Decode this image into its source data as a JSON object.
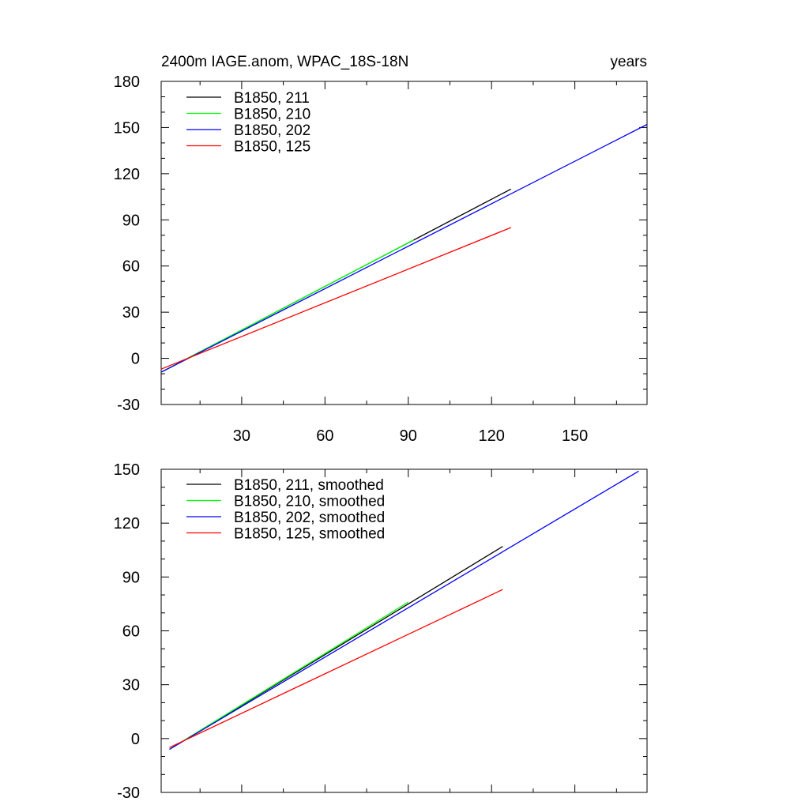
{
  "chart_data": [
    {
      "type": "line",
      "title_left": "2400m IAGE.anom, WPAC_18S-18N",
      "title_right": "years",
      "xlabel": "",
      "ylabel": "",
      "xlim": [
        1,
        176
      ],
      "ylim": [
        -30,
        180
      ],
      "x_ticks": [
        30,
        60,
        90,
        120,
        150
      ],
      "x_tick_labels": [
        "30",
        "60",
        "90",
        "120",
        "150"
      ],
      "y_ticks": [
        -30,
        0,
        30,
        60,
        90,
        120,
        150,
        180
      ],
      "y_tick_labels": [
        "-30",
        "0",
        "30",
        "60",
        "90",
        "120",
        "150",
        "180"
      ],
      "legend_position": "top-left",
      "grid": false,
      "series": [
        {
          "name": "B1850, 211",
          "color": "#000000",
          "x": [
            1,
            127
          ],
          "y": [
            -9,
            110
          ]
        },
        {
          "name": "B1850, 210",
          "color": "#00ff00",
          "x": [
            1,
            92
          ],
          "y": [
            -9,
            77
          ]
        },
        {
          "name": "B1850, 202",
          "color": "#0000ff",
          "x": [
            1,
            176
          ],
          "y": [
            -9,
            152
          ]
        },
        {
          "name": "B1850, 125",
          "color": "#ff0000",
          "x": [
            1,
            127
          ],
          "y": [
            -7,
            85
          ]
        }
      ]
    },
    {
      "type": "line",
      "title_left": "",
      "title_right": "",
      "xlabel": "",
      "ylabel": "",
      "xlim": [
        1,
        176
      ],
      "ylim": [
        -30,
        150
      ],
      "x_ticks": [
        30,
        60,
        90,
        120,
        150
      ],
      "x_tick_labels": [],
      "y_ticks": [
        -30,
        0,
        30,
        60,
        90,
        120,
        150
      ],
      "y_tick_labels": [
        "-30",
        "0",
        "30",
        "60",
        "90",
        "120",
        "150"
      ],
      "legend_position": "top-left",
      "grid": false,
      "series": [
        {
          "name": "B1850, 211, smoothed",
          "color": "#000000",
          "x": [
            4,
            124
          ],
          "y": [
            -6,
            107
          ]
        },
        {
          "name": "B1850, 210, smoothed",
          "color": "#00ff00",
          "x": [
            4,
            90
          ],
          "y": [
            -6,
            76
          ]
        },
        {
          "name": "B1850, 202, smoothed",
          "color": "#0000ff",
          "x": [
            4,
            173
          ],
          "y": [
            -6,
            149
          ]
        },
        {
          "name": "B1850, 125, smoothed",
          "color": "#ff0000",
          "x": [
            4,
            124
          ],
          "y": [
            -5,
            83
          ]
        }
      ]
    }
  ]
}
